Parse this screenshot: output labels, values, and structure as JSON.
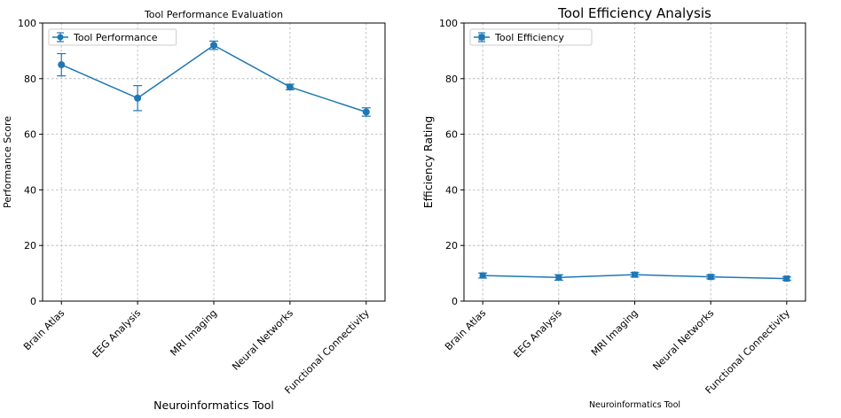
{
  "chart_data": [
    {
      "type": "line",
      "title": "Tool Performance Evaluation",
      "xlabel": "Neuroinformatics Tool",
      "ylabel": "Performance Score",
      "categories": [
        "Brain Atlas",
        "EEG Analysis",
        "MRI Imaging",
        "Neural Networks",
        "Functional Connectivity"
      ],
      "series": [
        {
          "name": "Tool Performance",
          "marker": "circle",
          "values": [
            85,
            73,
            92,
            77,
            68
          ],
          "errors": [
            4,
            4.5,
            1.5,
            1,
            1.5
          ]
        }
      ],
      "ylim": [
        0,
        100
      ],
      "yticks": [
        0,
        20,
        40,
        60,
        80,
        100
      ],
      "grid": true,
      "legend": "top-left",
      "color": "#1f77b4"
    },
    {
      "type": "line",
      "title": "Tool Efficiency Analysis",
      "xlabel": "Neuroinformatics Tool",
      "ylabel": "Efficiency Rating",
      "categories": [
        "Brain Atlas",
        "EEG Analysis",
        "MRI Imaging",
        "Neural Networks",
        "Functional Connectivity"
      ],
      "series": [
        {
          "name": "Tool Efficiency",
          "marker": "square",
          "values": [
            9.2,
            8.5,
            9.5,
            8.7,
            8.1
          ],
          "errors": [
            0.9,
            1.0,
            0.8,
            0.7,
            0.6
          ]
        }
      ],
      "ylim": [
        0,
        100
      ],
      "yticks": [
        0,
        20,
        40,
        60,
        80,
        100
      ],
      "grid": true,
      "legend": "top-left",
      "color": "#1f77b4"
    }
  ]
}
